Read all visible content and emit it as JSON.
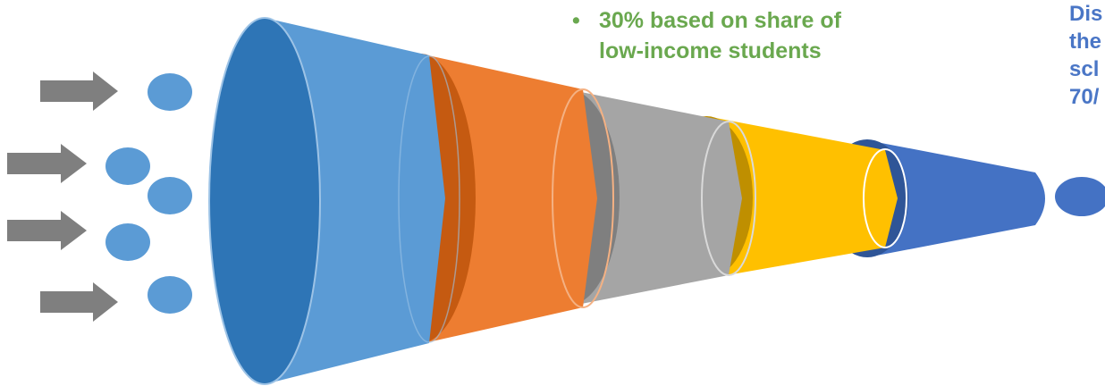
{
  "bullet": {
    "marker": "•",
    "line1": "30% based on share of",
    "line2": "low-income students"
  },
  "right_text": {
    "line1": "Dis",
    "line2": "the",
    "line3": "scl",
    "line4": "70/"
  },
  "colors": {
    "arrow": "#7f7f7f",
    "input_dot": "#5b9bd5",
    "output_dot": "#4472c4",
    "cone1": "#5b9bd5",
    "cone1_inner": "#2e75b6",
    "cone2": "#ed7d31",
    "cone3": "#a5a5a5",
    "cone4": "#ffc000",
    "cone5": "#4472c4",
    "bullet_text": "#6aa84f",
    "right_text": "#4a76c6"
  },
  "icons": {
    "arrow": "arrow-right-icon"
  }
}
